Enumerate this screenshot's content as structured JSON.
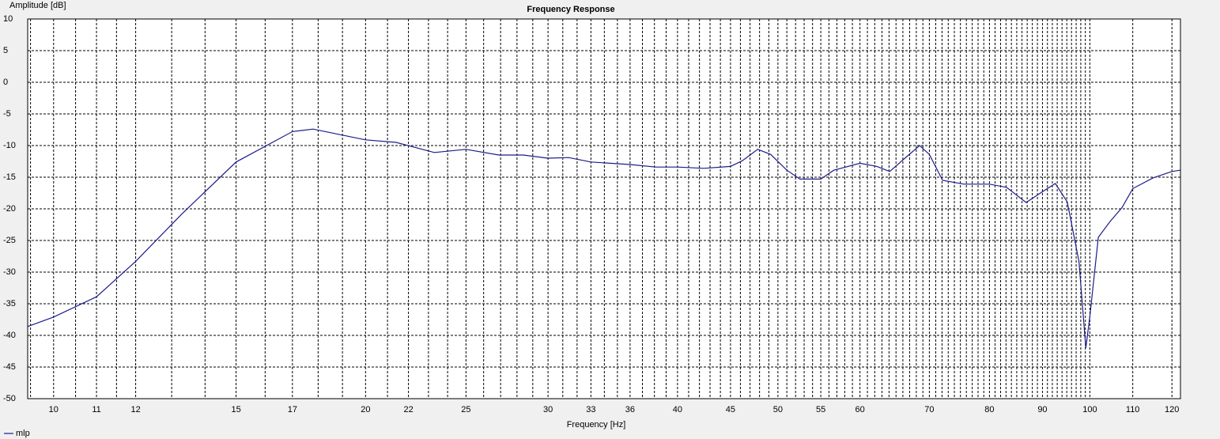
{
  "chart_data": {
    "type": "line",
    "title": "Frequency Response",
    "xlabel": "Frequency [Hz]",
    "ylabel": "Amplitude [dB]",
    "xscale": "log",
    "grid": true,
    "xlim": [
      9.44,
      122.3
    ],
    "ylim": [
      -50,
      10
    ],
    "xticks": [
      10,
      11,
      12,
      15,
      17,
      20,
      22,
      25,
      30,
      33,
      36,
      40,
      45,
      50,
      55,
      60,
      70,
      80,
      90,
      100,
      110,
      120
    ],
    "xminor": [
      9.5,
      10.5,
      11.5,
      13,
      14,
      16,
      18,
      19,
      21,
      23,
      24,
      26,
      27,
      28,
      29,
      31,
      32,
      34,
      35,
      37,
      38,
      39,
      41,
      42,
      43,
      44,
      46,
      47,
      48,
      49,
      51,
      52,
      53,
      54,
      56,
      57,
      58,
      59,
      61,
      62,
      63,
      64,
      65,
      66,
      67,
      68,
      69,
      71,
      72,
      73,
      74,
      75,
      76,
      77,
      78,
      79,
      81,
      82,
      83,
      84,
      85,
      86,
      87,
      88,
      89,
      91,
      92,
      93,
      94,
      95,
      96,
      97,
      98,
      99
    ],
    "yticks": [
      -50,
      -45,
      -40,
      -35,
      -30,
      -25,
      -20,
      -15,
      -10,
      -5,
      0,
      5,
      10
    ],
    "x": [
      9.44,
      10,
      11,
      12,
      13.3,
      15,
      17,
      17.8,
      20,
      21.4,
      23.3,
      25,
      26.9,
      28.4,
      30,
      31.4,
      33,
      36,
      38.1,
      40,
      42.4,
      45,
      46.2,
      47.8,
      49.2,
      51,
      52.5,
      55,
      56.6,
      60,
      62.3,
      64.1,
      66.3,
      68.5,
      70,
      72.1,
      75.6,
      80,
      83.1,
      86.8,
      90,
      92.6,
      95.1,
      97.6,
      99.1,
      100,
      101.9,
      104.6,
      107.4,
      110,
      115.1,
      120,
      122.2
    ],
    "legend": "bottom-left",
    "series": [
      {
        "name": "mlp",
        "color": "#1c1c8a",
        "values": [
          -38.6,
          -37.1,
          -33.9,
          -28.3,
          -20.8,
          -12.6,
          -7.8,
          -7.4,
          -9.1,
          -9.5,
          -11.1,
          -10.6,
          -11.5,
          -11.5,
          -12,
          -11.9,
          -12.6,
          -13,
          -13.4,
          -13.4,
          -13.6,
          -13.3,
          -12.4,
          -10.6,
          -11.4,
          -13.9,
          -15.3,
          -15.3,
          -13.9,
          -12.8,
          -13.3,
          -14.1,
          -12,
          -10,
          -11.4,
          -15.5,
          -16.1,
          -16.1,
          -16.6,
          -19,
          -17.3,
          -16,
          -18.9,
          -28.3,
          -42,
          -37,
          -24.5,
          -22,
          -19.8,
          -16.8,
          -15.1,
          -14.1,
          -13.9
        ]
      }
    ]
  }
}
